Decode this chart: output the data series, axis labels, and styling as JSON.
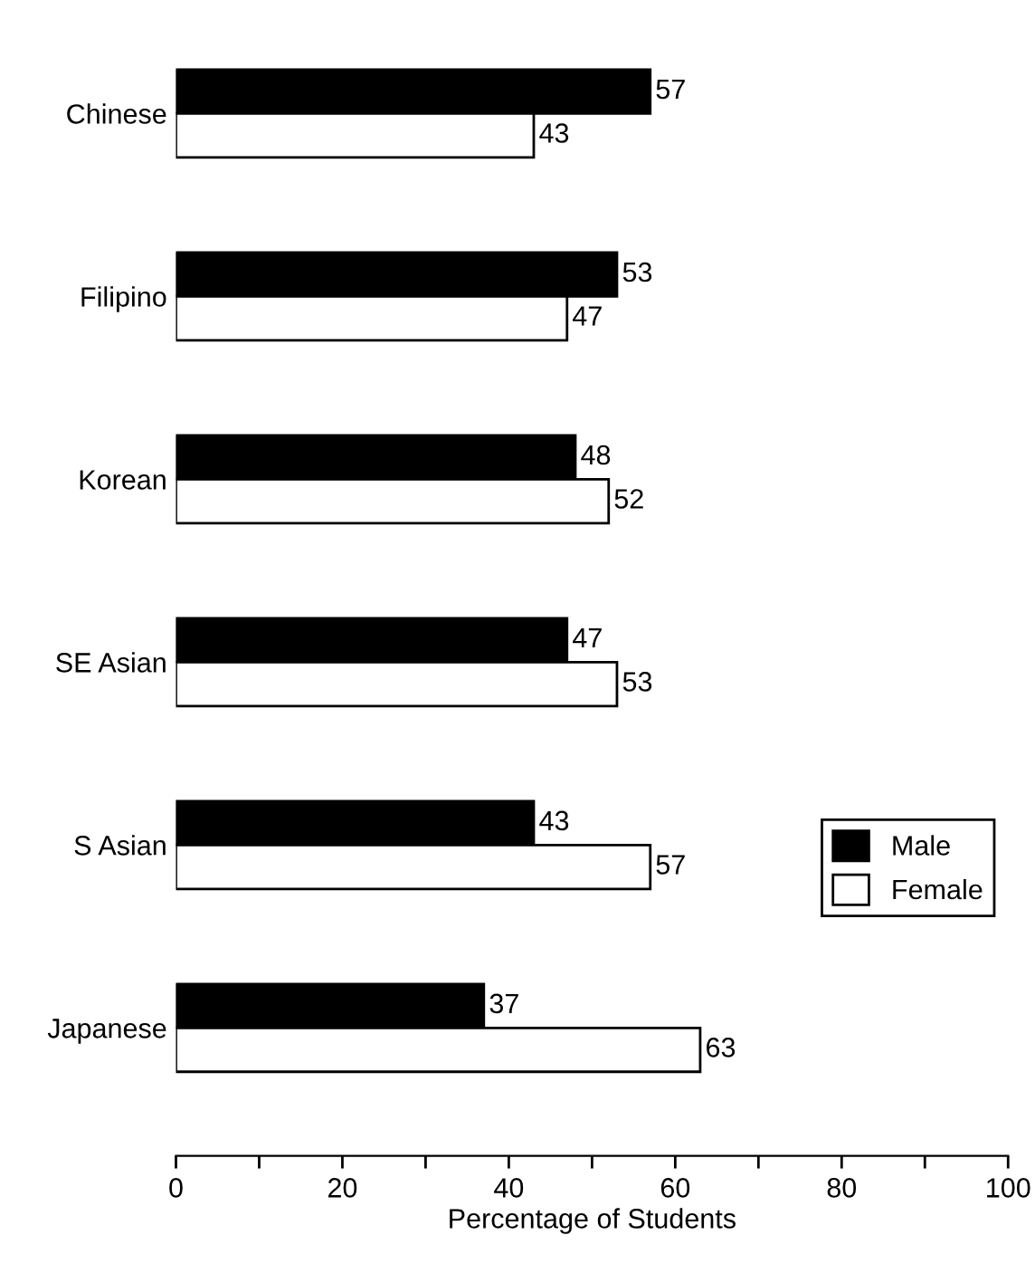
{
  "chart_data": {
    "type": "bar",
    "orientation": "horizontal",
    "xlabel": "Percentage of Students",
    "categories": [
      "Chinese",
      "Filipino",
      "Korean",
      "SE Asian",
      "S Asian",
      "Japanese"
    ],
    "series": [
      {
        "name": "Male",
        "color": "#000000",
        "values": [
          57,
          53,
          48,
          47,
          43,
          37
        ]
      },
      {
        "name": "Female",
        "color": "#ffffff",
        "values": [
          43,
          47,
          52,
          53,
          57,
          63
        ]
      }
    ],
    "xlim": [
      0,
      100
    ],
    "xticks": [
      0,
      20,
      40,
      60,
      80,
      100
    ],
    "data_labels": true,
    "legend": "right",
    "grid": false
  }
}
